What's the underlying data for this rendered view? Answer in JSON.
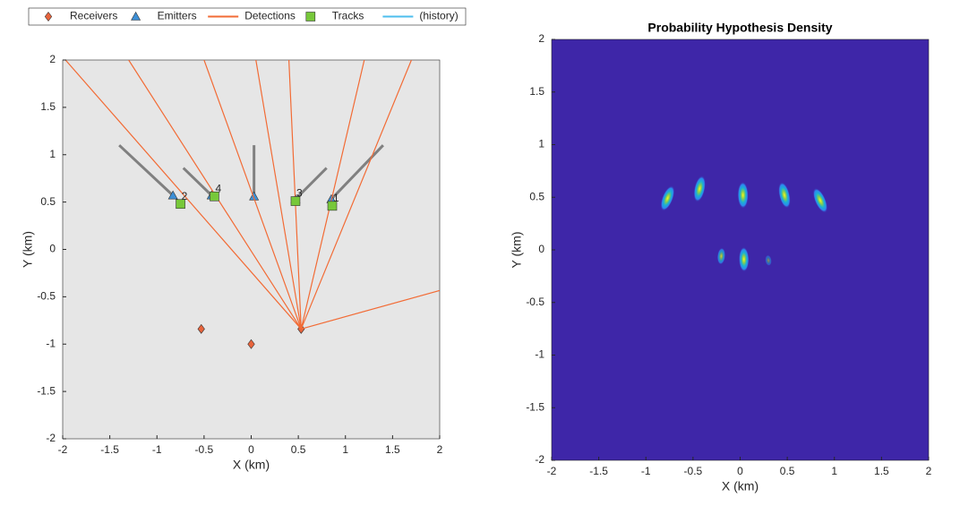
{
  "chart_data": [
    {
      "type": "scatter",
      "xlabel": "X (km)",
      "ylabel": "Y (km)",
      "xlim": [
        -2,
        2
      ],
      "ylim": [
        -2,
        2
      ],
      "xticks": [
        -2,
        -1.5,
        -1,
        -0.5,
        0,
        0.5,
        1,
        1.5,
        2
      ],
      "yticks": [
        -2,
        -1.5,
        -1,
        -0.5,
        0,
        0.5,
        1,
        1.5,
        2
      ],
      "background": "#e6e6e6",
      "legend": "top",
      "series": [
        {
          "name": "Receivers",
          "color": "#e8643c",
          "marker": "diamond",
          "x": [
            -0.53,
            0,
            0.53
          ],
          "y": [
            -0.84,
            -1,
            -0.84
          ]
        },
        {
          "name": "Emitters",
          "color": "#3d8fd6",
          "marker": "triangle",
          "x": [
            -0.83,
            -0.42,
            0.03,
            0.47,
            0.85
          ],
          "y": [
            0.57,
            0.57,
            0.56,
            0.53,
            0.53
          ],
          "path_color": "#808080",
          "path_x": [
            -1.4,
            -0.83,
            null,
            -0.72,
            -0.42,
            null,
            0.03,
            0.03,
            null,
            0.8,
            0.47,
            null,
            1.4,
            0.85
          ],
          "path_y": [
            1.1,
            0.57,
            null,
            0.86,
            0.57,
            null,
            1.1,
            0.57,
            null,
            0.86,
            0.53,
            null,
            1.1,
            0.53
          ]
        },
        {
          "name": "Detections",
          "color": "#f26b35",
          "marker": "line",
          "x": [
            0.53,
            -1.97,
            null,
            0.53,
            -1.3,
            null,
            0.53,
            -0.5,
            null,
            0.53,
            0.05,
            null,
            0.53,
            0.4,
            null,
            0.53,
            1.2,
            null,
            0.53,
            1.7,
            null,
            0.53,
            2.05
          ],
          "y": [
            -0.84,
            2,
            null,
            -0.84,
            2,
            null,
            -0.84,
            2,
            null,
            -0.84,
            2,
            null,
            -0.84,
            2,
            null,
            -0.84,
            2,
            null,
            -0.84,
            2,
            null,
            -0.84,
            -0.42
          ]
        },
        {
          "name": "Tracks",
          "color": "#77c83a",
          "marker": "square",
          "x": [
            -0.75,
            -0.39,
            0.47,
            0.86
          ],
          "y": [
            0.48,
            0.56,
            0.51,
            0.46
          ],
          "labels": [
            "2",
            "4",
            "3",
            "1"
          ]
        },
        {
          "name": "(history)",
          "color": "#4dbeee",
          "marker": "line"
        }
      ]
    },
    {
      "type": "heatmap",
      "title": "Probability Hypothesis Density",
      "xlabel": "X (km)",
      "ylabel": "Y (km)",
      "xlim": [
        -2,
        2
      ],
      "ylim": [
        -2,
        2
      ],
      "xticks": [
        -2,
        -1.5,
        -1,
        -0.5,
        0,
        0.5,
        1,
        1.5,
        2
      ],
      "yticks": [
        -2,
        -1.5,
        -1,
        -0.5,
        0,
        0.5,
        1,
        1.5,
        2
      ],
      "background": "#3e26a8",
      "peaks": {
        "x": [
          -0.77,
          -0.43,
          0.03,
          0.47,
          0.85,
          -0.2,
          0.04,
          0.3
        ],
        "y": [
          0.49,
          0.58,
          0.52,
          0.52,
          0.47,
          -0.06,
          -0.09,
          -0.1
        ],
        "values": [
          1,
          1,
          1,
          1,
          1,
          0.5,
          0.9,
          0.2
        ]
      }
    }
  ]
}
